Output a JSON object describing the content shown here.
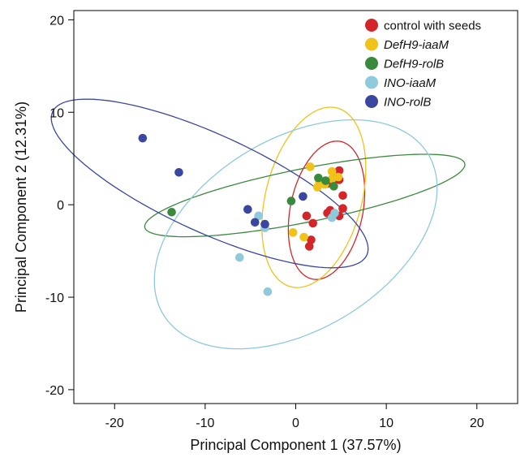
{
  "chart_data": {
    "type": "scatter",
    "xlabel": "Principal Component 1 (37.57%)",
    "ylabel": "Principal Component 2 (12.31%)",
    "xlim": [
      -24.5,
      24.5
    ],
    "ylim": [
      -21.5,
      21
    ],
    "xticks": [
      -20,
      -10,
      0,
      10,
      20
    ],
    "yticks": [
      -20,
      -10,
      0,
      10,
      20
    ],
    "legend_position": "top-right",
    "series": [
      {
        "name": "control with seeds",
        "italic": false,
        "color": "#d4262a",
        "points": [
          [
            4.8,
            3.7
          ],
          [
            4.8,
            2.7
          ],
          [
            5.2,
            1.0
          ],
          [
            4.3,
            2.8
          ],
          [
            3.5,
            2.3
          ],
          [
            5.2,
            -0.4
          ],
          [
            4.8,
            -1.2
          ],
          [
            3.8,
            -0.6
          ],
          [
            3.5,
            -0.9
          ],
          [
            1.2,
            -1.2
          ],
          [
            1.9,
            -2.0
          ],
          [
            1.7,
            -3.8
          ],
          [
            1.5,
            -4.5
          ]
        ],
        "ellipse": {
          "cx": 3.4,
          "cy": -0.6,
          "rx": 4.0,
          "ry": 7.6,
          "angle": -12
        }
      },
      {
        "name": "DefH9-iaaM",
        "italic": false,
        "color": "#f0c21a",
        "points": [
          [
            1.6,
            4.1
          ],
          [
            4.0,
            3.6
          ],
          [
            2.6,
            2.5
          ],
          [
            2.4,
            1.9
          ],
          [
            3.2,
            2.2
          ],
          [
            4.0,
            2.8
          ],
          [
            0.9,
            -3.5
          ],
          [
            -0.3,
            -3.0
          ],
          [
            4.7,
            3.0
          ]
        ],
        "ellipse": {
          "cx": 2.0,
          "cy": 0.8,
          "rx": 5.3,
          "ry": 10.0,
          "angle": -15
        }
      },
      {
        "name": "DefH9-rolB",
        "italic": false,
        "color": "#3a8a3e",
        "points": [
          [
            2.5,
            2.9
          ],
          [
            3.3,
            2.6
          ],
          [
            4.2,
            2.0
          ],
          [
            -0.5,
            0.4
          ],
          [
            -13.7,
            -0.8
          ]
        ],
        "ellipse": {
          "cx": 1.0,
          "cy": 1.0,
          "rx": 18.0,
          "ry": 2.9,
          "angle": 11
        }
      },
      {
        "name": "INO-iaaM",
        "italic": false,
        "color": "#8ec9dc",
        "points": [
          [
            -4.1,
            -1.2
          ],
          [
            -3.4,
            -2.5
          ],
          [
            -6.2,
            -5.7
          ],
          [
            -3.1,
            -9.4
          ],
          [
            4.0,
            -1.4
          ],
          [
            4.3,
            -0.9
          ]
        ],
        "ellipse": {
          "cx": 0.0,
          "cy": -3.2,
          "rx": 17.0,
          "ry": 10.4,
          "angle": 30
        }
      },
      {
        "name": "INO-rolB",
        "italic": false,
        "color": "#3a47a1",
        "points": [
          [
            -16.9,
            7.2
          ],
          [
            -12.9,
            3.5
          ],
          [
            -5.3,
            -0.5
          ],
          [
            -4.5,
            -1.9
          ],
          [
            -3.4,
            -2.1
          ],
          [
            0.8,
            0.9
          ]
        ],
        "ellipse": {
          "cx": -9.5,
          "cy": 2.3,
          "rx": 19.0,
          "ry": 5.3,
          "angle": -24
        }
      }
    ]
  }
}
